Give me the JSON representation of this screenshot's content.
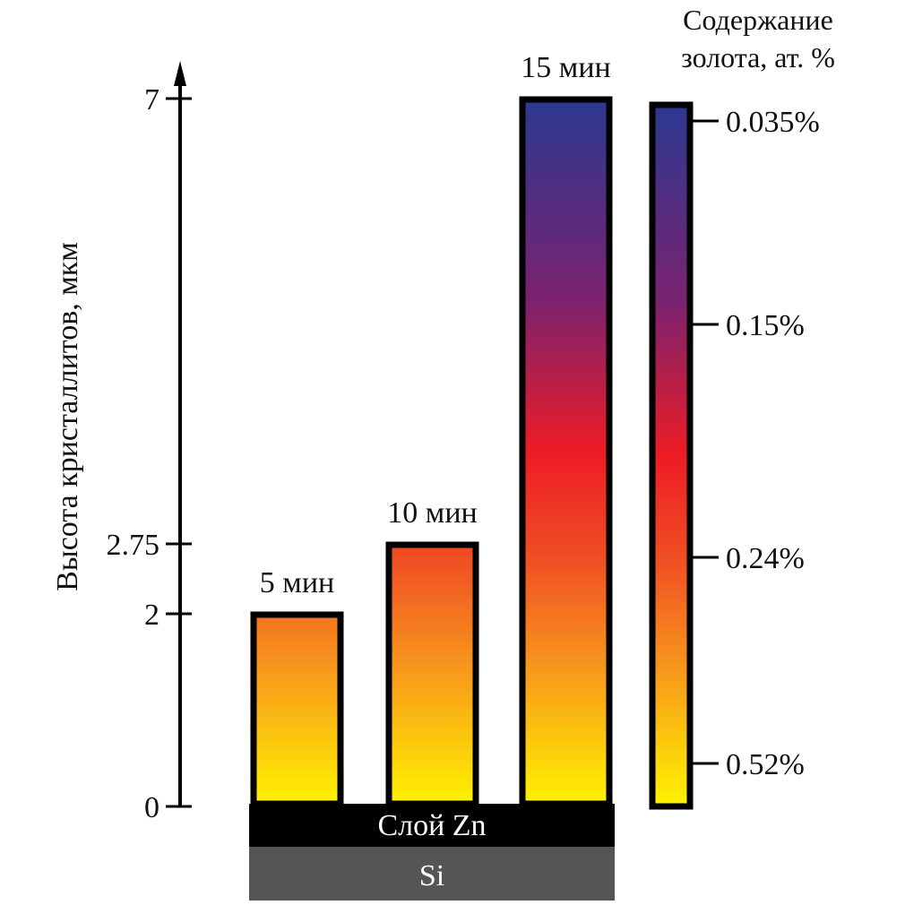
{
  "chart_data": {
    "type": "bar",
    "ylabel": "Высота кристаллитов, мкм",
    "ylim": [
      0,
      7
    ],
    "yticks": [
      0,
      2,
      2.75,
      7
    ],
    "ytick_labels": [
      "0",
      "2",
      "2.75",
      "7"
    ],
    "categories": [
      "5 мин",
      "10 мин",
      "15 мин"
    ],
    "values": [
      2,
      2.75,
      7
    ],
    "colorbar": {
      "title_line1": "Содержание",
      "title_line2": "золота, ат. %",
      "tick_labels": [
        "0.035%",
        "0.15%",
        "0.24%",
        "0.52%"
      ],
      "colors": [
        "#2b3990",
        "#7a2270",
        "#ed1c24",
        "#f7941d",
        "#fff200"
      ]
    },
    "layers": [
      {
        "label": "Слой Zn",
        "color": "#000000"
      },
      {
        "label": "Si",
        "color": "#555555"
      }
    ]
  }
}
